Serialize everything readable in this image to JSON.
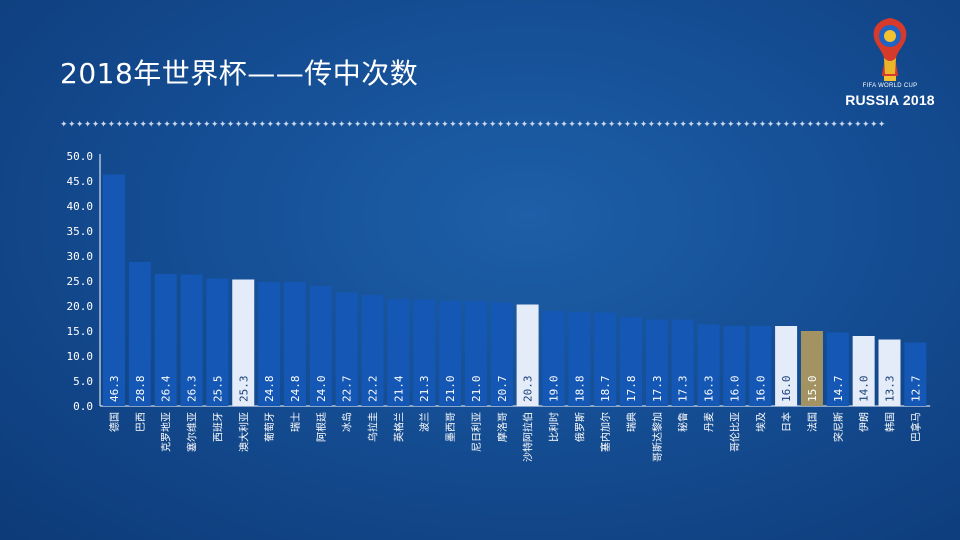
{
  "page": {
    "title": "2018年世界杯——传中次数"
  },
  "logo": {
    "line1": "FIFA WORLD CUP",
    "line2": "RUSSIA 2018"
  },
  "colors": {
    "bar_default": "#1457b5",
    "bar_highlight": "#e3ecf8",
    "bar_gold": "#a39362",
    "axis": "#ffffff"
  },
  "chart_data": {
    "type": "bar",
    "title": "2018年世界杯——传中次数",
    "ylim": [
      0,
      50
    ],
    "yticks": [
      "0.0",
      "5.0",
      "10.0",
      "15.0",
      "20.0",
      "25.0",
      "30.0",
      "35.0",
      "40.0",
      "45.0",
      "50.0"
    ],
    "grid": false,
    "categories": [
      "德国",
      "巴西",
      "克罗地亚",
      "塞尔维亚",
      "西班牙",
      "澳大利亚",
      "葡萄牙",
      "瑞士",
      "阿根廷",
      "冰岛",
      "乌拉圭",
      "英格兰",
      "波兰",
      "墨西哥",
      "尼日利亚",
      "摩洛哥",
      "沙特阿拉伯",
      "比利时",
      "俄罗斯",
      "塞内加尔",
      "瑞典",
      "哥斯达黎加",
      "秘鲁",
      "丹麦",
      "哥伦比亚",
      "埃及",
      "日本",
      "法国",
      "突尼斯",
      "伊朗",
      "韩国",
      "巴拿马"
    ],
    "values": [
      46.3,
      28.8,
      26.4,
      26.3,
      25.5,
      25.3,
      24.8,
      24.8,
      24.0,
      22.7,
      22.2,
      21.4,
      21.3,
      21.0,
      21.0,
      20.7,
      20.3,
      19.0,
      18.8,
      18.7,
      17.8,
      17.3,
      17.3,
      16.3,
      16.0,
      16.0,
      16.0,
      15.0,
      14.7,
      14.0,
      13.3,
      12.7
    ],
    "value_labels": [
      "46.3",
      "28.8",
      "26.4",
      "26.3",
      "25.5",
      "25.3",
      "24.8",
      "24.8",
      "24.0",
      "22.7",
      "22.2",
      "21.4",
      "21.3",
      "21.0",
      "21.0",
      "20.7",
      "20.3",
      "19.0",
      "18.8",
      "18.7",
      "17.8",
      "17.3",
      "17.3",
      "16.3",
      "16.0",
      "16.0",
      "16.0",
      "15.0",
      "14.7",
      "14.0",
      "13.3",
      "12.7"
    ],
    "highlight": [
      "default",
      "default",
      "default",
      "default",
      "default",
      "light",
      "default",
      "default",
      "default",
      "default",
      "default",
      "default",
      "default",
      "default",
      "default",
      "default",
      "light",
      "default",
      "default",
      "default",
      "default",
      "default",
      "default",
      "default",
      "default",
      "default",
      "light",
      "gold",
      "default",
      "light",
      "light",
      "default"
    ]
  }
}
